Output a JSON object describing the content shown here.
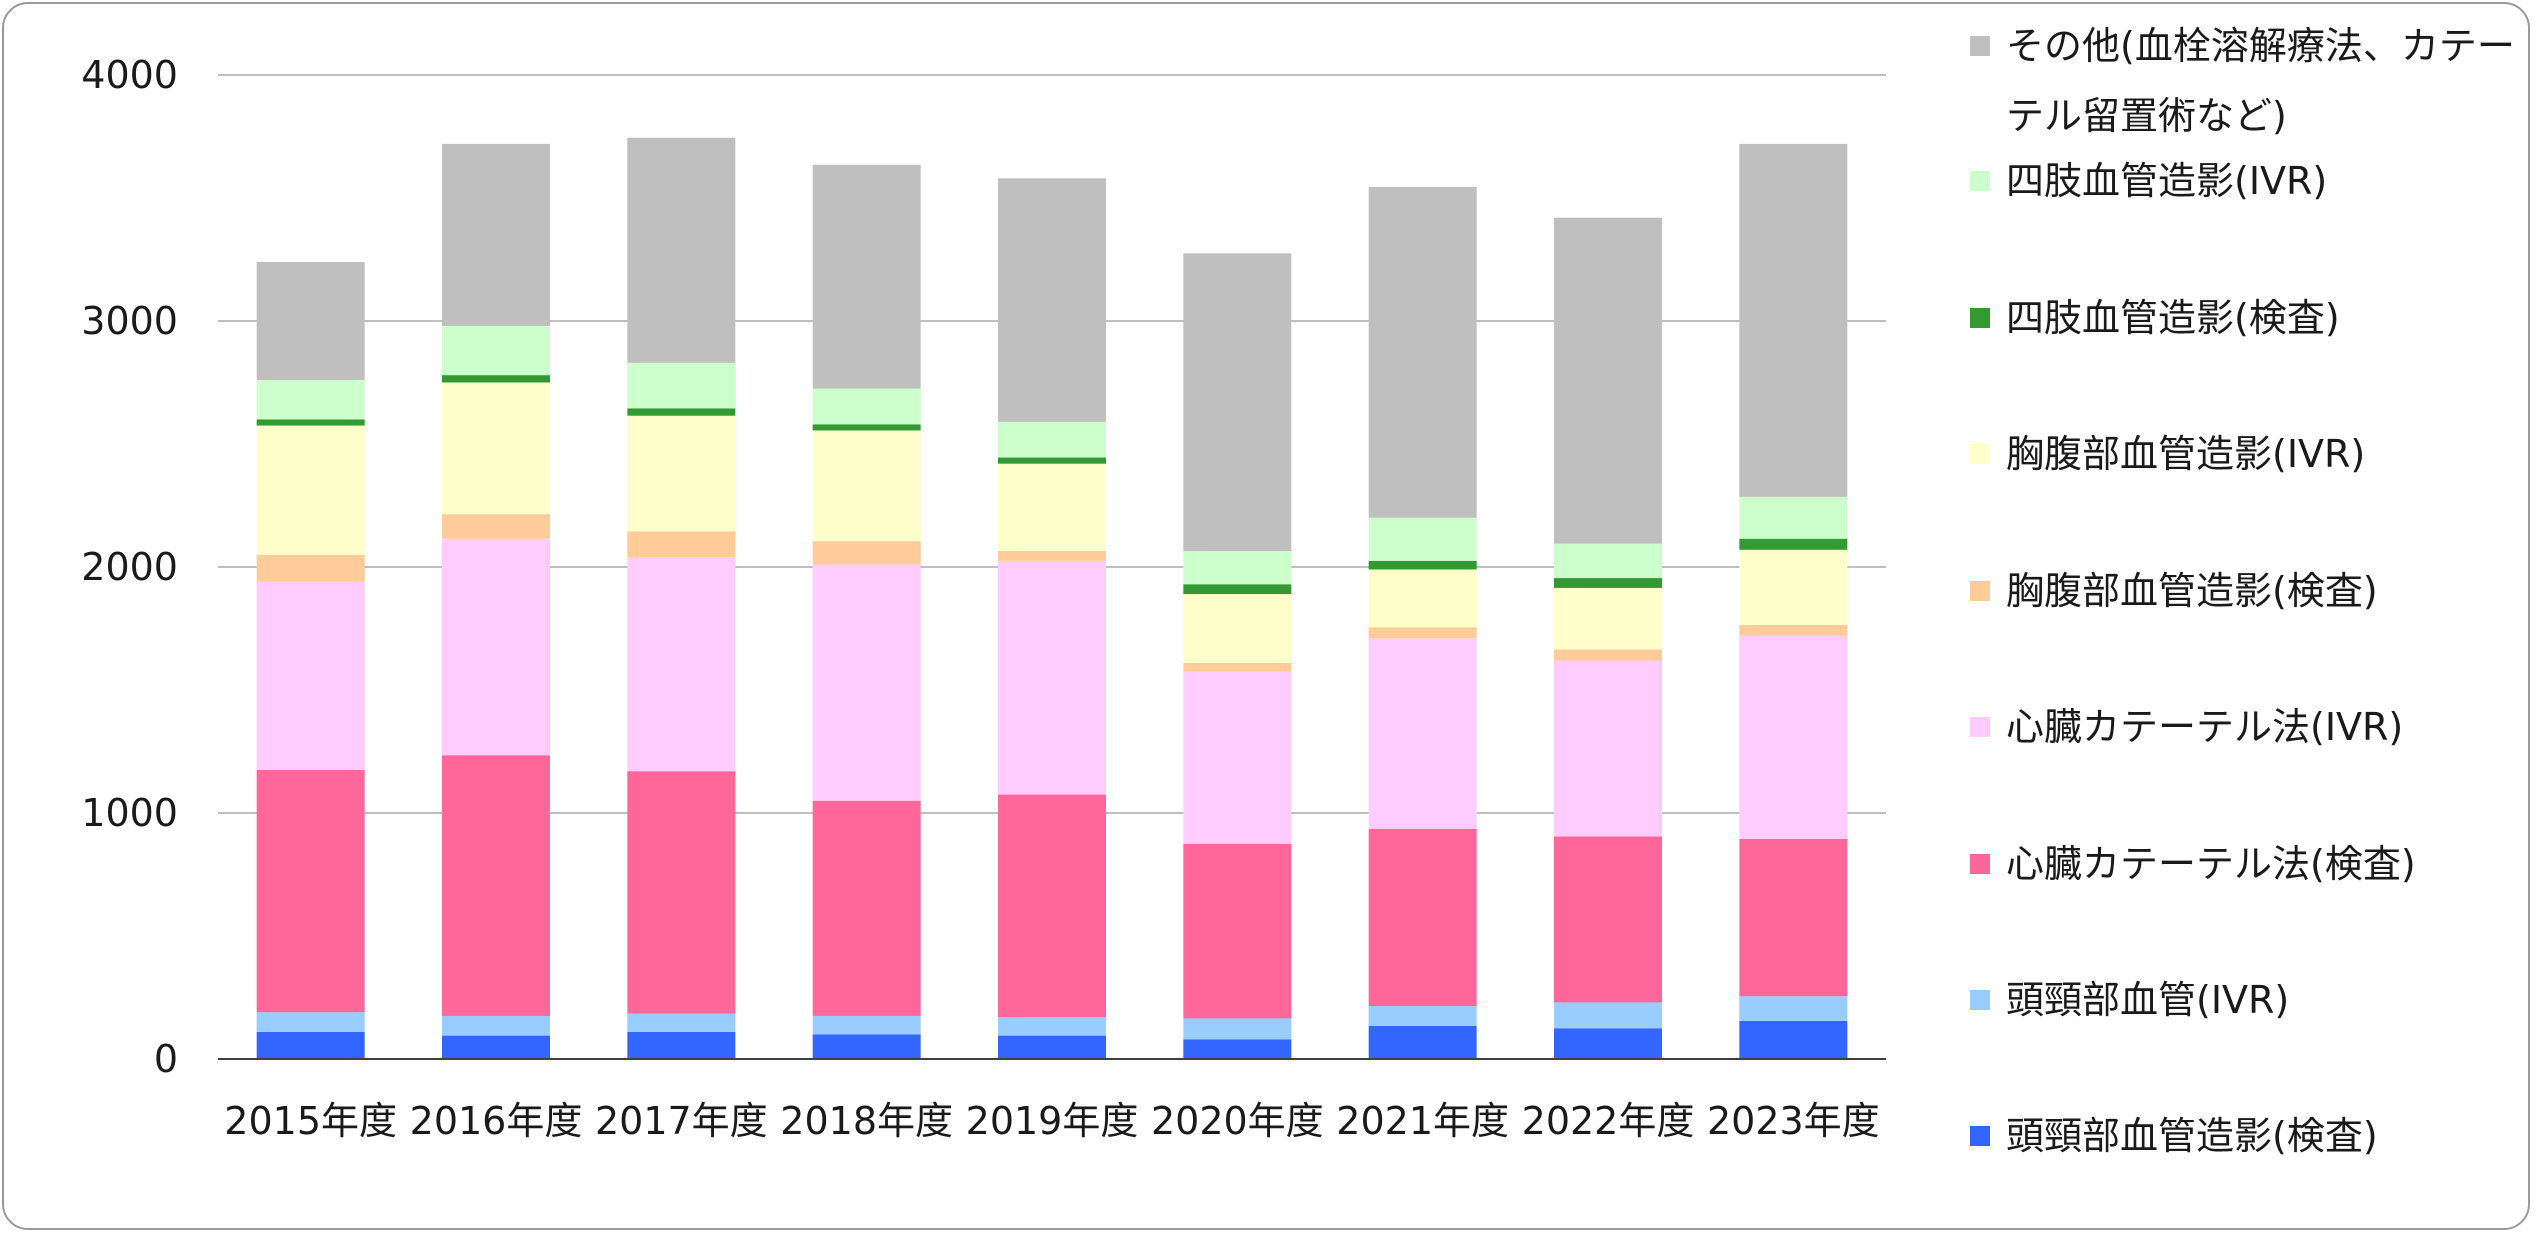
{
  "chart_data": {
    "type": "bar",
    "stacked": true,
    "categories": [
      "2015年度",
      "2016年度",
      "2017年度",
      "2018年度",
      "2019年度",
      "2020年度",
      "2021年度",
      "2022年度",
      "2023年度"
    ],
    "ylim": [
      0,
      4000
    ],
    "yticks": [
      "0",
      "1000",
      "2000",
      "3000",
      "4000"
    ],
    "grid": true,
    "legend_position": "right",
    "series": [
      {
        "name": "頭頸部血管造影(検査)",
        "color": "#3366ff",
        "values": [
          110,
          95,
          110,
          100,
          95,
          80,
          135,
          125,
          155
        ]
      },
      {
        "name": "頭頸部血管(IVR)",
        "color": "#99ccff",
        "values": [
          80,
          80,
          75,
          75,
          75,
          85,
          80,
          105,
          100
        ]
      },
      {
        "name": "心臓カテーテル法(検査)",
        "color": "#ff6699",
        "values": [
          985,
          1060,
          985,
          875,
          905,
          710,
          720,
          675,
          640
        ]
      },
      {
        "name": "心臓カテーテル法(IVR)",
        "color": "#ffccff",
        "values": [
          765,
          880,
          870,
          960,
          950,
          700,
          775,
          715,
          825
        ]
      },
      {
        "name": "胸腹部血管造影(検査)",
        "color": "#ffcc99",
        "values": [
          110,
          100,
          105,
          95,
          40,
          35,
          45,
          45,
          45
        ]
      },
      {
        "name": "胸腹部血管造影(IVR)",
        "color": "#ffffcc",
        "values": [
          525,
          535,
          470,
          450,
          355,
          280,
          235,
          250,
          305
        ]
      },
      {
        "name": "四肢血管造影(検査)",
        "color": "#339933",
        "values": [
          25,
          30,
          30,
          25,
          25,
          40,
          35,
          40,
          45
        ]
      },
      {
        "name": "四肢血管造影(IVR)",
        "color": "#ccffcc",
        "values": [
          160,
          200,
          185,
          145,
          145,
          135,
          175,
          140,
          170
        ]
      },
      {
        "name": "その他(血栓溶解療法、カテーテル留置術など)",
        "color": "#bfbfbf",
        "values": [
          480,
          740,
          915,
          910,
          990,
          1210,
          1345,
          1325,
          1435
        ]
      }
    ]
  }
}
